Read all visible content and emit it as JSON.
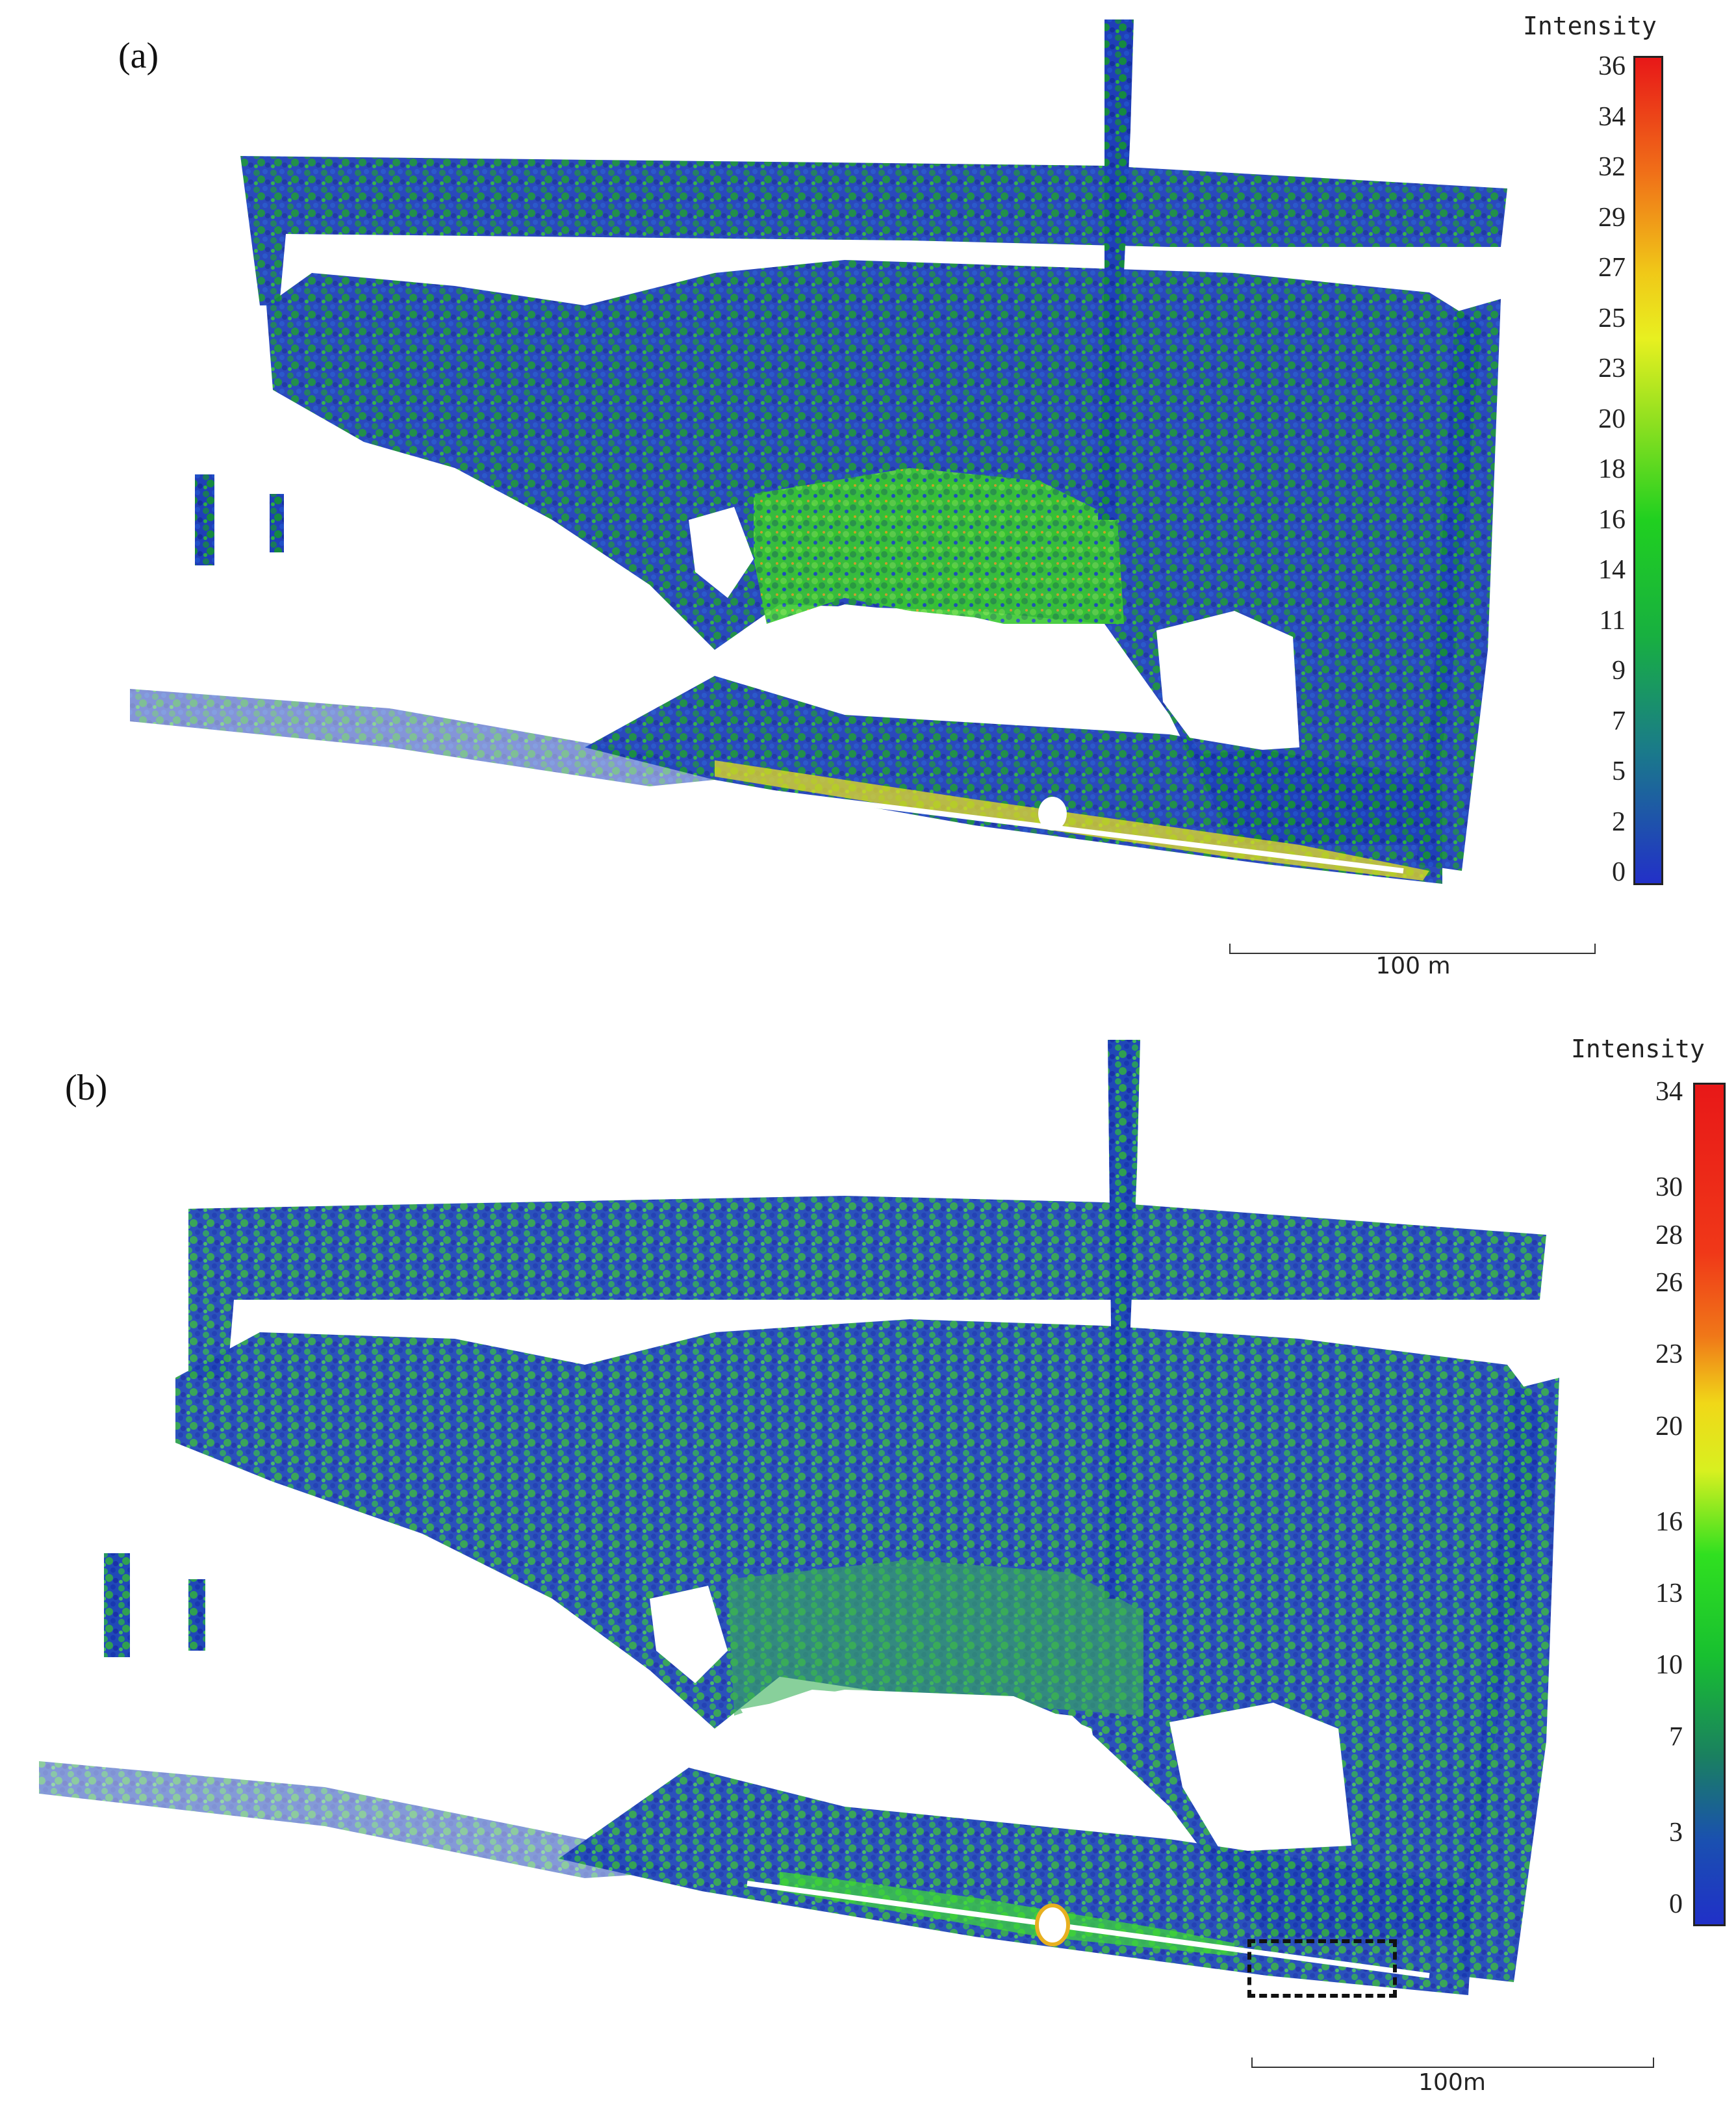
{
  "panel_a": {
    "label": "(a)",
    "colorbar_title": "Intensity",
    "colorbar_ticks": [
      "36",
      "34",
      "32",
      "29",
      "27",
      "25",
      "23",
      "20",
      "18",
      "16",
      "14",
      "11",
      "9",
      "7",
      "5",
      "2",
      "0"
    ],
    "scalebar_label": "100 m"
  },
  "panel_b": {
    "label": "(b)",
    "colorbar_title": "Intensity",
    "colorbar_ticks": [
      "34",
      "30",
      "28",
      "26",
      "23",
      "20",
      "16",
      "13",
      "10",
      "7",
      "3",
      "0"
    ],
    "scalebar_label": "100m"
  },
  "colors": {
    "low": "#1a2cc8",
    "mid": "#18c818",
    "high": "#e81818",
    "yellow": "#f0e020"
  }
}
